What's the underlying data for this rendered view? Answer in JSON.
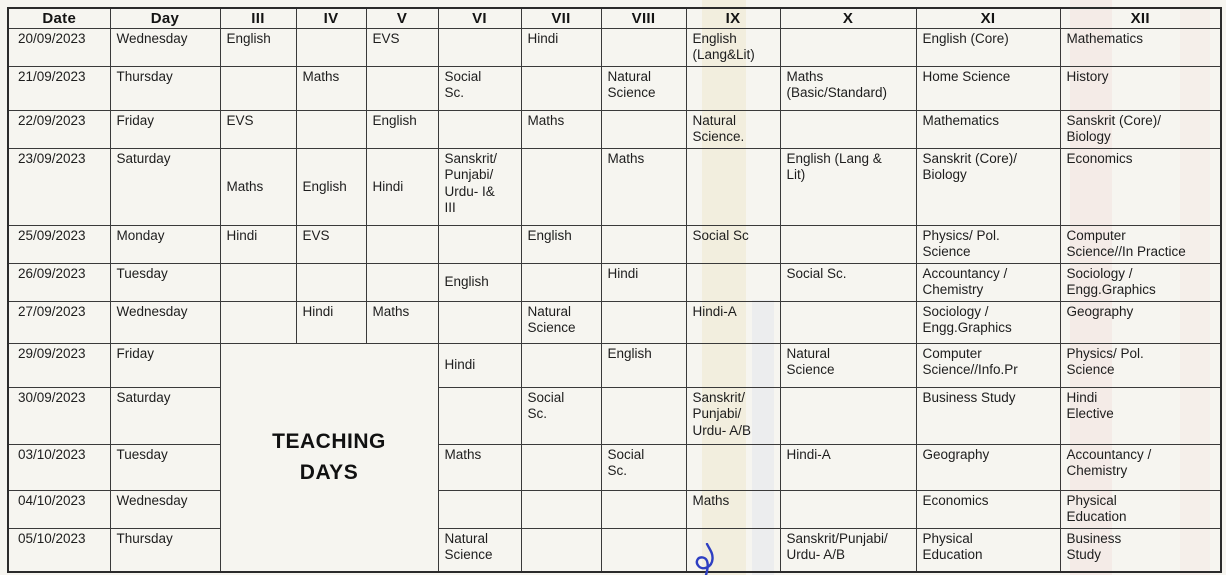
{
  "table": {
    "columns": [
      "Date",
      "Day",
      "III",
      "IV",
      "V",
      "VI",
      "VII",
      "VIII",
      "IX",
      "X",
      "XI",
      "XII"
    ],
    "teaching_days_label": "TEACHING\nDAYS",
    "rows": [
      {
        "date": "20/09/2023",
        "day": "Wednesday",
        "subjects": {
          "III": "English",
          "IV": "",
          "V": "EVS",
          "VI": "",
          "VII": "Hindi",
          "VIII": "",
          "IX": "English\n(Lang&Lit)",
          "X": "",
          "XI": "English (Core)",
          "XII": "Mathematics"
        }
      },
      {
        "date": "21/09/2023",
        "day": "Thursday",
        "subjects": {
          "III": "",
          "IV": "Maths",
          "V": "",
          "VI": "Social\nSc.",
          "VII": "",
          "VIII": "Natural\nScience",
          "IX": "",
          "X": "Maths\n(Basic/Standard)",
          "XI": "Home Science",
          "XII": "History"
        }
      },
      {
        "date": "22/09/2023",
        "day": "Friday",
        "subjects": {
          "III": "EVS",
          "IV": "",
          "V": "English",
          "VI": "",
          "VII": "Maths",
          "VIII": "",
          "IX": "Natural\nScience.",
          "X": "",
          "XI": "Mathematics",
          "XII": "Sanskrit (Core)/\nBiology"
        }
      },
      {
        "date": "23/09/2023",
        "day": "Saturday",
        "subjects": {
          "III": "Maths",
          "IV": "English",
          "V": "Hindi",
          "VI": "Sanskrit/\nPunjabi/\nUrdu- I&\nIII",
          "VII": "",
          "VIII": "Maths",
          "IX": "",
          "X": "English (Lang &\nLit)",
          "XI": "Sanskrit (Core)/\nBiology",
          "XII": "Economics"
        }
      },
      {
        "date": "25/09/2023",
        "day": "Monday",
        "subjects": {
          "III": "Hindi",
          "IV": "EVS",
          "V": "",
          "VI": "",
          "VII": "English",
          "VIII": "",
          "IX": "Social Sc",
          "X": "",
          "XI": "Physics/ Pol.\nScience",
          "XII": "Computer\nScience//In Practice"
        }
      },
      {
        "date": "26/09/2023",
        "day": "Tuesday",
        "subjects": {
          "III": "",
          "IV": "",
          "V": "",
          "VI": "English",
          "VII": "",
          "VIII": "Hindi",
          "IX": "",
          "X": "Social Sc.",
          "XI": "Accountancy /\nChemistry",
          "XII": "Sociology /\nEngg.Graphics"
        }
      },
      {
        "date": "27/09/2023",
        "day": "Wednesday",
        "subjects": {
          "III": "",
          "IV": "Hindi",
          "V": "Maths",
          "VI": "",
          "VII": "Natural\nScience",
          "VIII": "",
          "IX": "Hindi-A",
          "X": "",
          "XI": "Sociology /\nEngg.Graphics",
          "XII": "Geography"
        }
      },
      {
        "date": "29/09/2023",
        "day": "Friday",
        "subjects": {
          "VI": "Hindi",
          "VII": "",
          "VIII": "English",
          "IX": "",
          "X": "Natural\nScience",
          "XI": "Computer\nScience//Info.Pr",
          "XII": "Physics/ Pol.\nScience"
        }
      },
      {
        "date": "30/09/2023",
        "day": "Saturday",
        "subjects": {
          "VI": "",
          "VII": "Social\nSc.",
          "VIII": "",
          "IX": "Sanskrit/\nPunjabi/\nUrdu- A/B",
          "X": "",
          "XI": "Business Study",
          "XII": "Hindi\nElective"
        }
      },
      {
        "date": "03/10/2023",
        "day": "Tuesday",
        "subjects": {
          "VI": "Maths",
          "VII": "",
          "VIII": "Social\nSc.",
          "IX": "",
          "X": "Hindi-A",
          "XI": "Geography",
          "XII": "Accountancy /\nChemistry"
        }
      },
      {
        "date": "04/10/2023",
        "day": "Wednesday",
        "subjects": {
          "VI": "",
          "VII": "",
          "VIII": "",
          "IX": "Maths",
          "X": "",
          "XI": "Economics",
          "XII": "Physical\nEducation"
        }
      },
      {
        "date": "05/10/2023",
        "day": "Thursday",
        "subjects": {
          "VI": "Natural\nScience",
          "VII": "",
          "VIII": "",
          "IX": "",
          "X": "Sanskrit/Punjabi/\nUrdu- A/B",
          "XI": "Physical\nEducation",
          "XII": "Business\nStudy"
        }
      }
    ]
  },
  "annotations": {
    "pen_mark_color": "#2e3fc2"
  }
}
